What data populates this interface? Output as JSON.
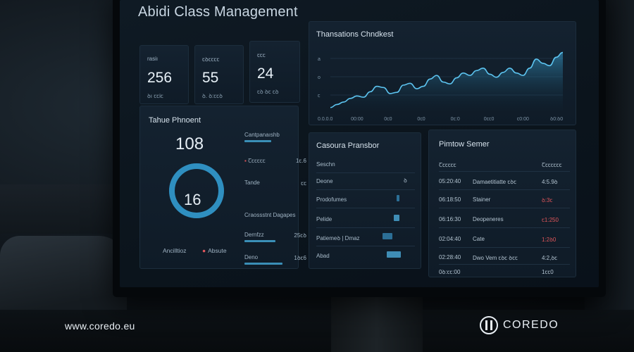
{
  "app": {
    "title": "Abidi Class Management"
  },
  "stats": [
    {
      "label": "rasiı",
      "value": "256",
      "sub": "ꝺı ꞇꞇiꞇ"
    },
    {
      "label": "ꞇꝺꞇꞇꞇꞇ",
      "value": "55",
      "sub": "ꝺ. ꝺ:ꞇꞇꝺ"
    },
    {
      "label": "ꞇꞇꞇ",
      "value": "24",
      "sub": "ꞇꝺ ꝺꞇ ꞇꝺ"
    }
  ],
  "transactions_chart": {
    "title": "Thansations Chndkest",
    "y_ticks": [
      "a",
      "o",
      "ꞇ"
    ],
    "x_ticks": [
      "0.0.0.0",
      "00:00",
      "0ꞇ0",
      "0ꞇ0",
      "0ꞇ:0",
      "0ꞇꞇ0",
      "ꞇ0:00",
      "ꝺ0:ꝺ0"
    ]
  },
  "chart_data": {
    "type": "area",
    "title": "Thansations Chndkest",
    "x": [
      0,
      1,
      2,
      3,
      4,
      5,
      6,
      7,
      8,
      9,
      10,
      11,
      12,
      13,
      14,
      15,
      16,
      17,
      18,
      19,
      20,
      21,
      22,
      23,
      24,
      25,
      26,
      27,
      28,
      29,
      30,
      31,
      32,
      33,
      34,
      35
    ],
    "values": [
      5,
      10,
      14,
      20,
      24,
      22,
      31,
      40,
      38,
      28,
      30,
      42,
      45,
      36,
      40,
      52,
      58,
      47,
      44,
      54,
      62,
      58,
      66,
      70,
      60,
      55,
      63,
      70,
      62,
      58,
      70,
      85,
      78,
      74,
      88,
      96
    ],
    "ylim": [
      0,
      100
    ],
    "grid": true
  },
  "tahue": {
    "title": "Tahue Phnoent",
    "big_value": "108",
    "donut_value": "16",
    "donut_fraction": 1.0,
    "foot_left": "Ancilltioz",
    "foot_right": "Absute",
    "side_items": [
      {
        "label": "Cantpanaıshb",
        "value": "",
        "bar": 0.52
      },
      {
        "label": "Ꞇꞇꞇꞇꞇꞇ",
        "value": "1ꞇ.6",
        "red": true,
        "bar": 0
      },
      {
        "label": "Tande",
        "value": "ꞇꞇ",
        "bar": 0
      },
      {
        "label": "Craossstnt Dagapes",
        "value": "",
        "bar": 0
      },
      {
        "label": "Dernfzz",
        "value": "25ꞇꝺ",
        "bar": 0.5
      },
      {
        "label": "Deno",
        "value": "1ꝺꞇ6",
        "bar": 0.62
      }
    ]
  },
  "casoura": {
    "title": "Casoura Pransbor",
    "header": "Seschn",
    "rows": [
      {
        "label": "Deone",
        "bar": 0.0,
        "mark": "ꝺ"
      },
      {
        "label": "Prodofumes",
        "bar": 0.1
      },
      {
        "label": "Pelide",
        "bar": 0.18
      },
      {
        "label": "Patiemeꝺ | Dmaz",
        "bar": 0.25
      },
      {
        "label": "Abad",
        "bar": 0.32
      }
    ]
  },
  "pimtow": {
    "title": "Pimtow Semer",
    "columns": [
      "Ꞇꞇꞇꞇꞇꞇ",
      "Ꞇꞇꞇꞇꞇꞇꞇ"
    ],
    "rows": [
      {
        "time": "05:20:40",
        "name": "Damaetitiatte ꞇꝺꞇ",
        "value": "4:5.9ꝺ",
        "red": false
      },
      {
        "time": "06:18:50",
        "name": "Stainer",
        "value": "ꝺ:3ꞇ",
        "red": true
      },
      {
        "time": "06:16:30",
        "name": "Deopeneres",
        "value": "ꞇ1:250",
        "red": true
      },
      {
        "time": "02:04:40",
        "name": "Cate",
        "value": "1:2ꝺ0",
        "red": true
      },
      {
        "time": "02:28:40",
        "name": "Dwo Vem ꞇꝺꞇ ꝺꞇꞇ",
        "value": "4:2,ꝺꞇ",
        "red": false
      },
      {
        "time": "0ꝺ:ꞇꞇ:00",
        "name": "",
        "value": "1ꞇꞇ0",
        "red": false
      }
    ]
  },
  "watermark": {
    "url": "www.coredo.eu",
    "brand": "COREDO"
  }
}
